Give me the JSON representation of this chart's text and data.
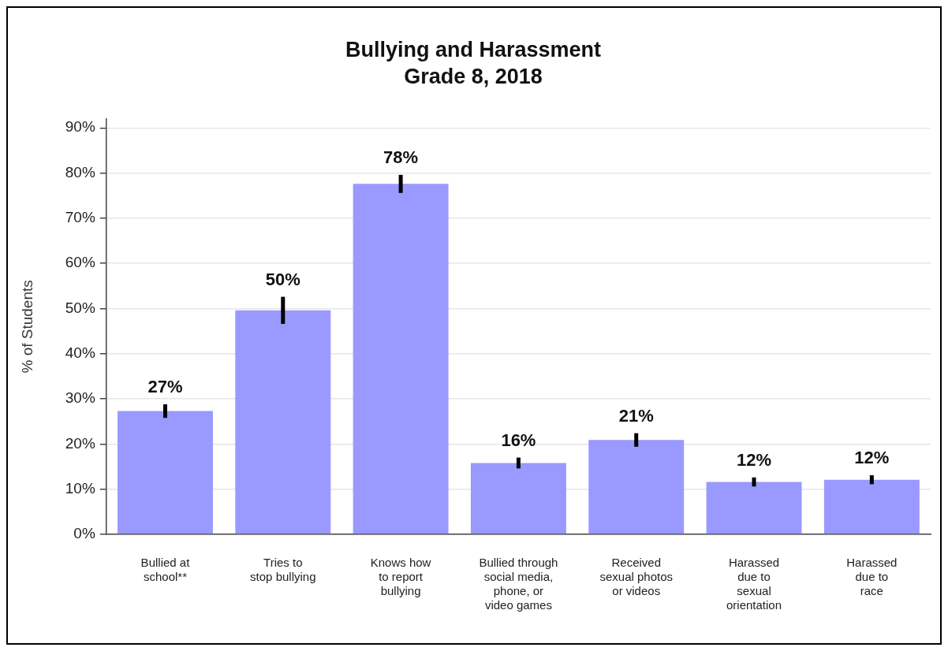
{
  "chart_data": {
    "type": "bar",
    "title": "Bullying and Harassment",
    "subtitle": "Grade 8, 2018",
    "ylabel": "% of Students",
    "categories": [
      "Bullied at\nschool**",
      "Tries to\nstop bullying",
      "Knows how\nto report\nbullying",
      "Bullied through\nsocial media,\nphone, or\nvideo games",
      "Received\nsexual photos\nor videos",
      "Harassed\ndue to\nsexual\norientation",
      "Harassed\ndue to\nrace"
    ],
    "values": [
      27.3,
      49.6,
      77.6,
      15.8,
      20.9,
      11.6,
      12.1
    ],
    "value_labels": [
      "27%",
      "50%",
      "78%",
      "16%",
      "21%",
      "12%",
      "12%"
    ],
    "errors": [
      1.5,
      3,
      2,
      1.2,
      1.5,
      1,
      1
    ],
    "color": "#9999ff",
    "ylim": [
      0,
      92
    ],
    "yticks": [
      {
        "value": 0,
        "label": "0%"
      },
      {
        "value": 10,
        "label": "10%"
      },
      {
        "value": 20,
        "label": "20%"
      },
      {
        "value": 30,
        "label": "30%"
      },
      {
        "value": 40,
        "label": "40%"
      },
      {
        "value": 50,
        "label": "50%"
      },
      {
        "value": 60,
        "label": "60%"
      },
      {
        "value": 70,
        "label": "70%"
      },
      {
        "value": 80,
        "label": "80%"
      },
      {
        "value": 90,
        "label": "90%"
      }
    ],
    "grid": "y",
    "legend": false
  }
}
